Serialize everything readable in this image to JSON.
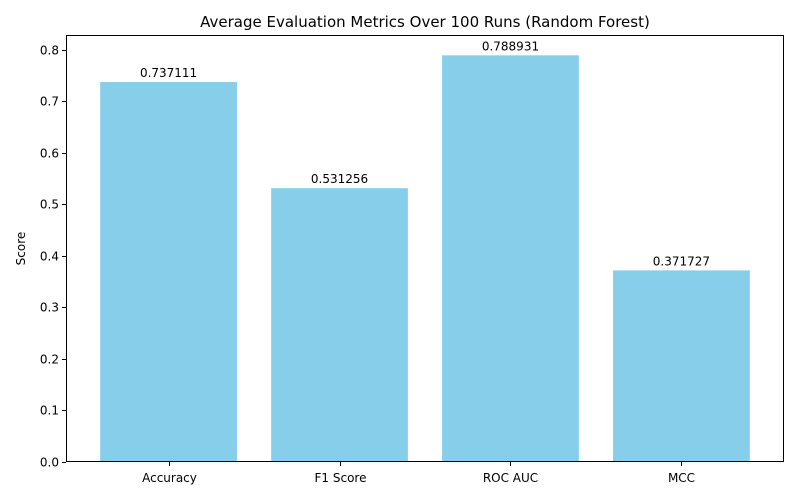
{
  "chart_data": {
    "type": "bar",
    "title": "Average Evaluation Metrics Over 100 Runs (Random Forest)",
    "xlabel": "",
    "ylabel": "Score",
    "categories": [
      "Accuracy",
      "F1 Score",
      "ROC AUC",
      "MCC"
    ],
    "values": [
      0.737111,
      0.531256,
      0.788931,
      0.371727
    ],
    "value_labels": [
      "0.737111",
      "0.531256",
      "0.788931",
      "0.371727"
    ],
    "ylim": [
      0,
      0.8
    ],
    "yticks": [
      0.0,
      0.1,
      0.2,
      0.3,
      0.4,
      0.5,
      0.6,
      0.7,
      0.8
    ],
    "ytick_labels": [
      "0.0",
      "0.1",
      "0.2",
      "0.3",
      "0.4",
      "0.5",
      "0.6",
      "0.7",
      "0.8"
    ],
    "bar_color": "#87CEEB",
    "grid": false,
    "legend": false
  }
}
